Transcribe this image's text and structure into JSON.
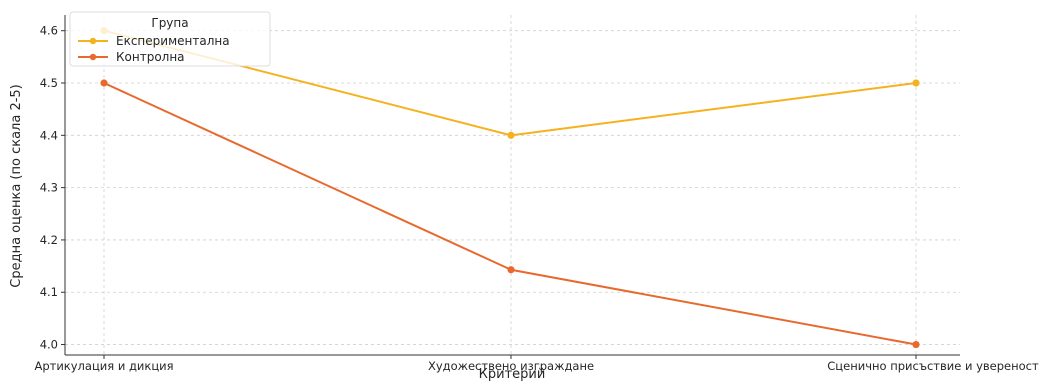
{
  "chart_data": {
    "type": "line",
    "title": "",
    "xlabel": "Критерий",
    "ylabel": "Средна оценка (по скала 2-5)",
    "categories": [
      "Артикулация и дикция",
      "Художествено изграждане",
      "Сценично присъствие и увереност"
    ],
    "y_ticks": [
      "4.0",
      "4.1",
      "4.2",
      "4.3",
      "4.4",
      "4.5",
      "4.6"
    ],
    "ylim": [
      3.98,
      4.63
    ],
    "grid": true,
    "legend": {
      "title": "Група",
      "position": "top-left"
    },
    "series": [
      {
        "name": "Експериментална",
        "color": "#f5b21f",
        "values": [
          4.6,
          4.4,
          4.5
        ]
      },
      {
        "name": "Контролна",
        "color": "#e8692e",
        "values": [
          4.5,
          4.143,
          4.0
        ]
      }
    ]
  }
}
